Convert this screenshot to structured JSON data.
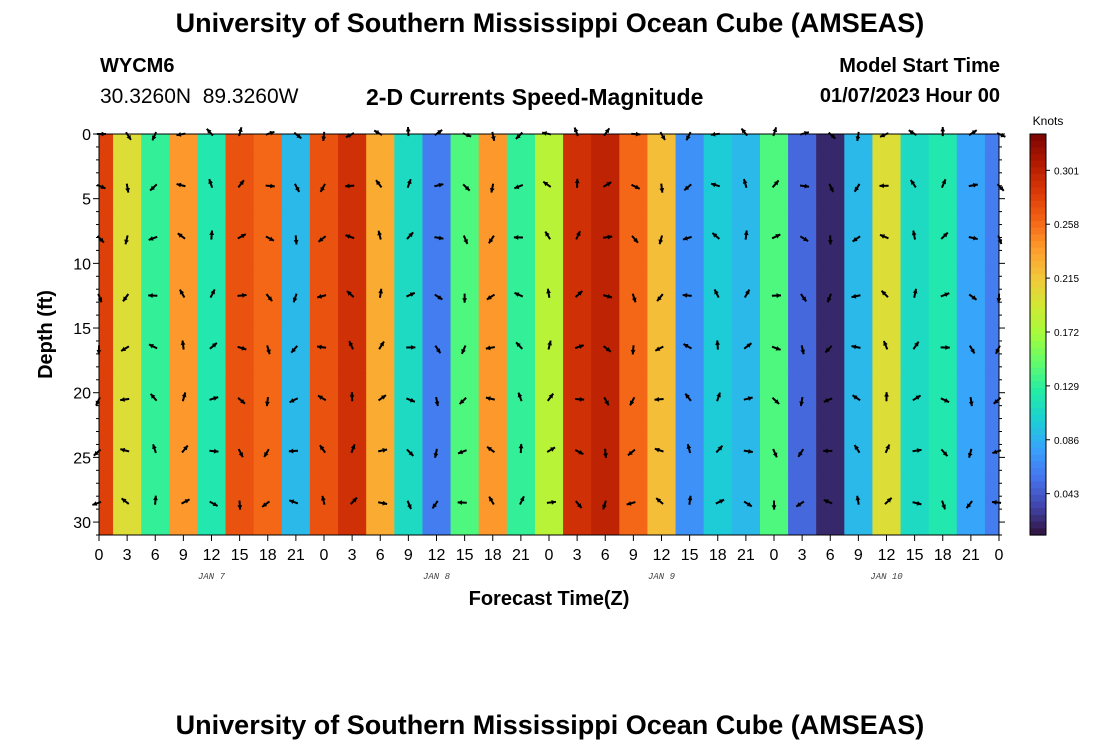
{
  "title": "University of Southern Mississippi Ocean Cube (AMSEAS)",
  "station": "WYCM6",
  "coords": "30.3260N  89.3260W",
  "subtitle": "2-D Currents Speed-Magnitude",
  "model_start_label": "Model Start Time",
  "model_start_value": "01/07/2023 Hour 00",
  "footer_title": "University of Southern Mississippi Ocean Cube (AMSEAS)",
  "chart_data": {
    "type": "heatmap",
    "title": "2-D Currents Speed-Magnitude",
    "xlabel": "Forecast Time(Z)",
    "ylabel": "Depth (ft)",
    "x_hours": [
      0,
      96
    ],
    "xtick_labels": [
      "0",
      "3",
      "6",
      "9",
      "12",
      "15",
      "18",
      "21",
      "0",
      "3",
      "6",
      "9",
      "12",
      "15",
      "18",
      "21",
      "0",
      "3",
      "6",
      "9",
      "12",
      "15",
      "18",
      "21",
      "0",
      "3",
      "6",
      "9",
      "12",
      "15",
      "18",
      "21",
      "0"
    ],
    "date_labels": [
      {
        "label": "JAN 7",
        "hour": 12
      },
      {
        "label": "JAN 8",
        "hour": 36
      },
      {
        "label": "JAN 9",
        "hour": 60
      },
      {
        "label": "JAN 10",
        "hour": 84
      }
    ],
    "ylim": [
      0,
      31
    ],
    "yticks": [
      0,
      5,
      10,
      15,
      20,
      25,
      30
    ],
    "colorbar": {
      "label": "Knots",
      "min": 0.01,
      "max": 0.33,
      "ticks": [
        0.301,
        0.258,
        0.215,
        0.172,
        0.129,
        0.086,
        0.043
      ],
      "colors": [
        "#30123b",
        "#4145ab",
        "#4675ed",
        "#39a2fc",
        "#1bcfd4",
        "#24eca6",
        "#61fc6c",
        "#a4fc3b",
        "#d1e834",
        "#f3c63a",
        "#fe9b2d",
        "#f36315",
        "#d93806",
        "#b11901",
        "#7a0402"
      ]
    },
    "arrow_depths": [
      0,
      4,
      8,
      12.5,
      16.5,
      20.5,
      24.5,
      28.5
    ],
    "speed_matrix": [
      [
        0.28,
        0.2,
        0.13,
        0.24,
        0.12,
        0.27,
        0.26,
        0.09,
        0.27,
        0.29,
        0.23,
        0.11,
        0.06,
        0.14,
        0.24,
        0.13,
        0.18,
        0.29,
        0.3,
        0.26,
        0.22,
        0.07,
        0.1,
        0.09,
        0.14,
        0.05,
        0.02,
        0.09,
        0.2,
        0.11,
        0.12,
        0.08,
        0.06
      ],
      [
        0.28,
        0.2,
        0.13,
        0.24,
        0.12,
        0.27,
        0.26,
        0.09,
        0.27,
        0.29,
        0.23,
        0.11,
        0.06,
        0.14,
        0.24,
        0.13,
        0.18,
        0.29,
        0.3,
        0.26,
        0.22,
        0.07,
        0.1,
        0.09,
        0.14,
        0.05,
        0.02,
        0.09,
        0.2,
        0.11,
        0.12,
        0.08,
        0.06
      ],
      [
        0.28,
        0.2,
        0.13,
        0.24,
        0.12,
        0.27,
        0.26,
        0.09,
        0.27,
        0.29,
        0.23,
        0.11,
        0.06,
        0.14,
        0.24,
        0.13,
        0.18,
        0.29,
        0.3,
        0.26,
        0.22,
        0.07,
        0.1,
        0.09,
        0.14,
        0.05,
        0.02,
        0.09,
        0.2,
        0.11,
        0.12,
        0.08,
        0.06
      ],
      [
        0.28,
        0.2,
        0.13,
        0.24,
        0.12,
        0.27,
        0.26,
        0.09,
        0.27,
        0.29,
        0.23,
        0.11,
        0.06,
        0.14,
        0.24,
        0.13,
        0.18,
        0.29,
        0.3,
        0.26,
        0.22,
        0.07,
        0.1,
        0.09,
        0.14,
        0.05,
        0.02,
        0.09,
        0.2,
        0.11,
        0.12,
        0.08,
        0.06
      ],
      [
        0.28,
        0.2,
        0.13,
        0.24,
        0.12,
        0.27,
        0.26,
        0.09,
        0.27,
        0.29,
        0.23,
        0.11,
        0.06,
        0.14,
        0.24,
        0.13,
        0.18,
        0.29,
        0.3,
        0.26,
        0.22,
        0.07,
        0.1,
        0.09,
        0.14,
        0.05,
        0.02,
        0.09,
        0.2,
        0.11,
        0.12,
        0.08,
        0.06
      ],
      [
        0.28,
        0.2,
        0.13,
        0.24,
        0.12,
        0.27,
        0.26,
        0.09,
        0.27,
        0.29,
        0.23,
        0.11,
        0.06,
        0.14,
        0.24,
        0.13,
        0.18,
        0.29,
        0.3,
        0.26,
        0.22,
        0.07,
        0.1,
        0.09,
        0.14,
        0.05,
        0.02,
        0.09,
        0.2,
        0.11,
        0.12,
        0.08,
        0.06
      ],
      [
        0.28,
        0.2,
        0.13,
        0.24,
        0.12,
        0.27,
        0.26,
        0.09,
        0.27,
        0.29,
        0.23,
        0.11,
        0.06,
        0.14,
        0.24,
        0.13,
        0.18,
        0.29,
        0.3,
        0.26,
        0.22,
        0.07,
        0.1,
        0.09,
        0.14,
        0.05,
        0.02,
        0.09,
        0.2,
        0.11,
        0.12,
        0.08,
        0.06
      ],
      [
        0.28,
        0.2,
        0.13,
        0.24,
        0.12,
        0.27,
        0.26,
        0.09,
        0.27,
        0.29,
        0.23,
        0.11,
        0.06,
        0.14,
        0.24,
        0.13,
        0.18,
        0.29,
        0.3,
        0.26,
        0.22,
        0.07,
        0.1,
        0.09,
        0.14,
        0.05,
        0.02,
        0.09,
        0.2,
        0.11,
        0.12,
        0.08,
        0.06
      ]
    ]
  }
}
